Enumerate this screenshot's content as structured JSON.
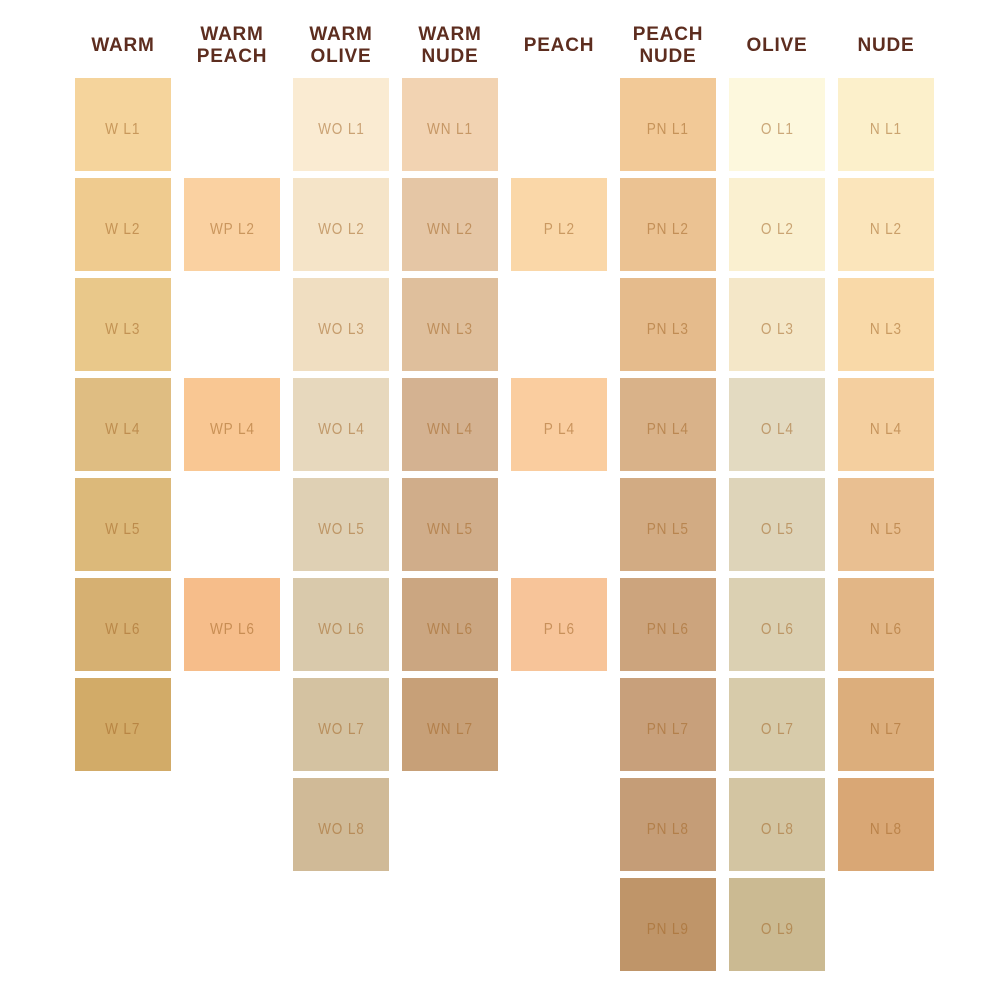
{
  "colors": {
    "background": "#FFFFFF",
    "header_text": "#5D2D1F",
    "swatch_label_text": "rgba(163,102,38,0.55)"
  },
  "chart_data": {
    "type": "table",
    "title": "",
    "grid": {
      "rows": 9,
      "cols": 8
    },
    "columns": [
      {
        "key": "warm",
        "header": "WARM",
        "swatches": [
          {
            "row": 1,
            "label": "W L1",
            "color": "#F5D49C"
          },
          {
            "row": 2,
            "label": "W L2",
            "color": "#EFCB8F"
          },
          {
            "row": 3,
            "label": "W L3",
            "color": "#E9C88A"
          },
          {
            "row": 4,
            "label": "W L4",
            "color": "#DFBD82"
          },
          {
            "row": 5,
            "label": "W L5",
            "color": "#DCB97A"
          },
          {
            "row": 6,
            "label": "W L6",
            "color": "#D6B072"
          },
          {
            "row": 7,
            "label": "W L7",
            "color": "#D2AB68"
          }
        ]
      },
      {
        "key": "warm-peach",
        "header": "WARM PEACH",
        "swatches": [
          {
            "row": 2,
            "label": "WP L2",
            "color": "#FAD1A1"
          },
          {
            "row": 4,
            "label": "WP L4",
            "color": "#F9C793"
          },
          {
            "row": 6,
            "label": "WP L6",
            "color": "#F6BD8A"
          }
        ]
      },
      {
        "key": "warm-olive",
        "header": "WARM OLIVE",
        "swatches": [
          {
            "row": 1,
            "label": "WO L1",
            "color": "#FAEBD2"
          },
          {
            "row": 2,
            "label": "WO L2",
            "color": "#F5E4C8"
          },
          {
            "row": 3,
            "label": "WO L3",
            "color": "#F0DEC1"
          },
          {
            "row": 4,
            "label": "WO L4",
            "color": "#E7D8BD"
          },
          {
            "row": 5,
            "label": "WO L5",
            "color": "#DFD0B4"
          },
          {
            "row": 6,
            "label": "WO L6",
            "color": "#D9C9AB"
          },
          {
            "row": 7,
            "label": "WO L7",
            "color": "#D4C2A1"
          },
          {
            "row": 8,
            "label": "WO L8",
            "color": "#D0BA97"
          }
        ]
      },
      {
        "key": "warm-nude",
        "header": "WARM NUDE",
        "swatches": [
          {
            "row": 1,
            "label": "WN L1",
            "color": "#F2D3B2"
          },
          {
            "row": 2,
            "label": "WN L2",
            "color": "#E5C6A5"
          },
          {
            "row": 3,
            "label": "WN L3",
            "color": "#DFBF9C"
          },
          {
            "row": 4,
            "label": "WN L4",
            "color": "#D4B291"
          },
          {
            "row": 5,
            "label": "WN L5",
            "color": "#D0AD8A"
          },
          {
            "row": 6,
            "label": "WN L6",
            "color": "#CBA681"
          },
          {
            "row": 7,
            "label": "WN L7",
            "color": "#C7A078"
          }
        ]
      },
      {
        "key": "peach",
        "header": "PEACH",
        "swatches": [
          {
            "row": 2,
            "label": "P L2",
            "color": "#FAD7A8"
          },
          {
            "row": 4,
            "label": "P L4",
            "color": "#FACD9F"
          },
          {
            "row": 6,
            "label": "P L6",
            "color": "#F7C499"
          }
        ]
      },
      {
        "key": "peach-nude",
        "header": "PEACH NUDE",
        "swatches": [
          {
            "row": 1,
            "label": "PN L1",
            "color": "#F2C997"
          },
          {
            "row": 2,
            "label": "PN L2",
            "color": "#EBC292"
          },
          {
            "row": 3,
            "label": "PN L3",
            "color": "#E5BB8C"
          },
          {
            "row": 4,
            "label": "PN L4",
            "color": "#D9B289"
          },
          {
            "row": 5,
            "label": "PN L5",
            "color": "#D2AB83"
          },
          {
            "row": 6,
            "label": "PN L6",
            "color": "#CCA47D"
          },
          {
            "row": 7,
            "label": "PN L7",
            "color": "#C8A07B"
          },
          {
            "row": 8,
            "label": "PN L8",
            "color": "#C59D77"
          },
          {
            "row": 9,
            "label": "PN L9",
            "color": "#BF9569"
          }
        ]
      },
      {
        "key": "olive",
        "header": "OLIVE",
        "swatches": [
          {
            "row": 1,
            "label": "O L1",
            "color": "#FDF8DD"
          },
          {
            "row": 2,
            "label": "O L2",
            "color": "#FAF0D0"
          },
          {
            "row": 3,
            "label": "O L3",
            "color": "#F4E7C8"
          },
          {
            "row": 4,
            "label": "O L4",
            "color": "#E3DAC1"
          },
          {
            "row": 5,
            "label": "O L5",
            "color": "#DED4B9"
          },
          {
            "row": 6,
            "label": "O L6",
            "color": "#DBD0B2"
          },
          {
            "row": 7,
            "label": "O L7",
            "color": "#D7CBAA"
          },
          {
            "row": 8,
            "label": "O L8",
            "color": "#D3C5A2"
          },
          {
            "row": 9,
            "label": "O L9",
            "color": "#CBBA92"
          }
        ]
      },
      {
        "key": "nude",
        "header": "NUDE",
        "swatches": [
          {
            "row": 1,
            "label": "N L1",
            "color": "#FCF0CB"
          },
          {
            "row": 2,
            "label": "N L2",
            "color": "#FBE5BB"
          },
          {
            "row": 3,
            "label": "N L3",
            "color": "#F9D9A8"
          },
          {
            "row": 4,
            "label": "N L4",
            "color": "#F4CF9F"
          },
          {
            "row": 5,
            "label": "N L5",
            "color": "#E9BF91"
          },
          {
            "row": 6,
            "label": "N L6",
            "color": "#E2B686"
          },
          {
            "row": 7,
            "label": "N L7",
            "color": "#DCAE7C"
          },
          {
            "row": 8,
            "label": "N L8",
            "color": "#D9A775"
          }
        ]
      }
    ]
  }
}
